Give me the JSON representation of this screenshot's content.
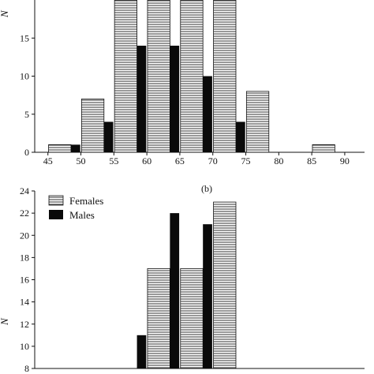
{
  "chart_data": [
    {
      "type": "bar",
      "xlabel": "",
      "ylabel": "N",
      "xlim": [
        43,
        93
      ],
      "ylim": [
        0,
        20
      ],
      "xticks": [
        "45",
        "50",
        "55",
        "60",
        "65",
        "70",
        "75",
        "80",
        "85",
        "90"
      ],
      "yticks": [
        "0",
        "5",
        "10",
        "15"
      ],
      "series": [
        {
          "name": "Females",
          "pattern": "hatch",
          "points": [
            {
              "x": 47.5,
              "y": 1
            },
            {
              "x": 52.5,
              "y": 7
            },
            {
              "x": 57.5,
              "y": 20
            },
            {
              "x": 62.5,
              "y": 20
            },
            {
              "x": 67.5,
              "y": 20
            },
            {
              "x": 72.5,
              "y": 20
            },
            {
              "x": 77.5,
              "y": 8
            },
            {
              "x": 87.5,
              "y": 1
            }
          ]
        },
        {
          "name": "Males",
          "pattern": "solid",
          "points": [
            {
              "x": 47.5,
              "y": 1
            },
            {
              "x": 52.5,
              "y": 4
            },
            {
              "x": 57.5,
              "y": 14
            },
            {
              "x": 62.5,
              "y": 14
            },
            {
              "x": 67.5,
              "y": 10
            },
            {
              "x": 72.5,
              "y": 4
            }
          ]
        }
      ],
      "colors": {
        "axis": "#111111",
        "solid": "#0a0a0a",
        "hatch": "#333333"
      }
    },
    {
      "type": "bar",
      "panel_label": "(b)",
      "xlabel": "",
      "ylabel": "N",
      "xlim": [
        43,
        93
      ],
      "ylim": [
        8,
        24
      ],
      "xticks": [],
      "yticks": [
        "8",
        "10",
        "12",
        "14",
        "16",
        "18",
        "20",
        "22",
        "24"
      ],
      "legend": {
        "placement": "top-left",
        "entries": [
          "Females",
          "Males"
        ]
      },
      "series": [
        {
          "name": "Females",
          "pattern": "hatch",
          "points": [
            {
              "x": 62.5,
              "y": 17
            },
            {
              "x": 67.5,
              "y": 17
            },
            {
              "x": 72.5,
              "y": 23
            }
          ]
        },
        {
          "name": "Males",
          "pattern": "solid",
          "points": [
            {
              "x": 57.5,
              "y": 11
            },
            {
              "x": 62.5,
              "y": 22
            },
            {
              "x": 67.5,
              "y": 21
            },
            {
              "x": 72.5,
              "y": 8
            }
          ]
        }
      ],
      "colors": {
        "axis": "#111111",
        "solid": "#0a0a0a",
        "hatch": "#333333"
      }
    }
  ]
}
